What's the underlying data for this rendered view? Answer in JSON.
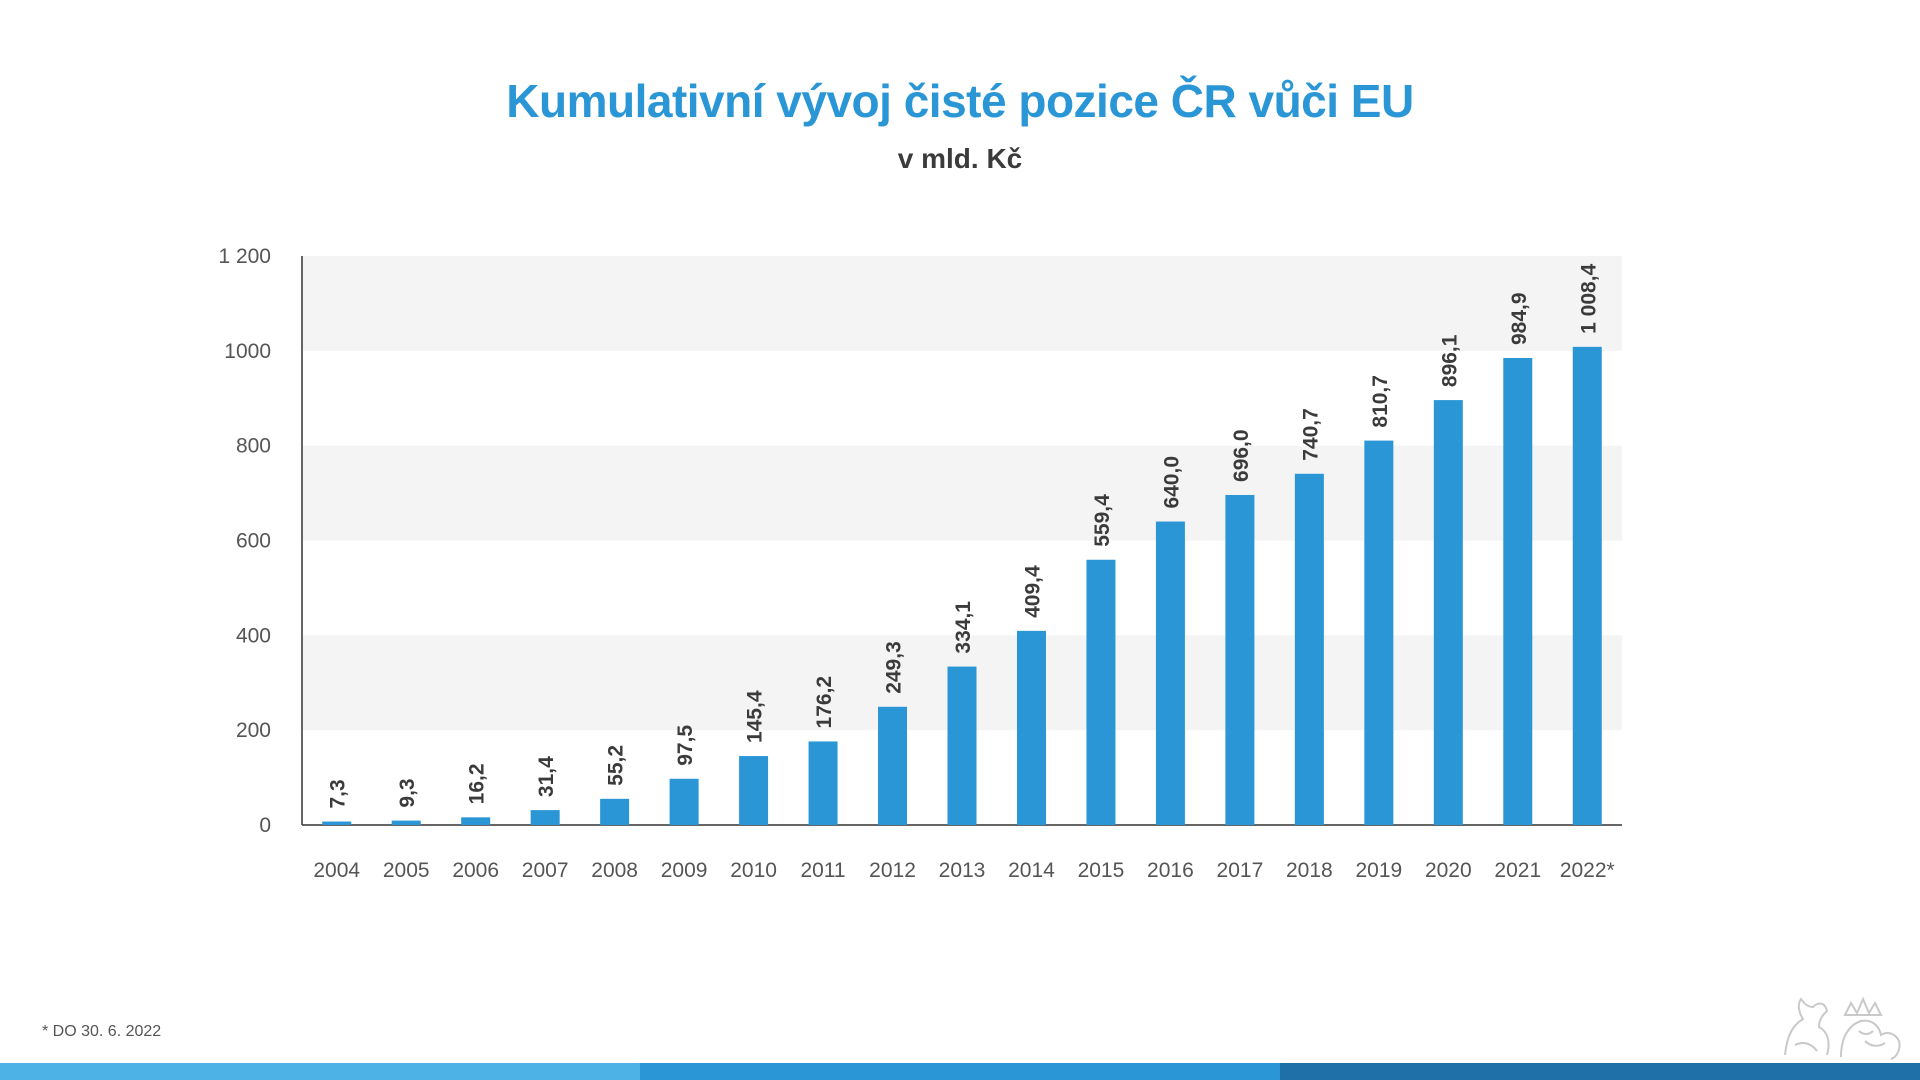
{
  "header": {
    "title": "Kumulativní vývoj čisté pozice ČR vůči EU",
    "subtitle": "v mld. Kč"
  },
  "footer": {
    "footnote": "* DO 30. 6. 2022"
  },
  "colors": {
    "title": "#2a96d5",
    "bar": "#2a96d5",
    "band_light": "#4db3e6",
    "band_mid": "#2a96d5",
    "band_dark": "#1f6fa8",
    "grid_band": "#f4f4f4"
  },
  "logo": {
    "icon": "czech-lion-coat-of-arms-icon"
  },
  "chart_data": {
    "type": "bar",
    "title": "Kumulativní vývoj čisté pozice ČR vůči EU",
    "subtitle": "v mld. Kč",
    "categories": [
      "2004",
      "2005",
      "2006",
      "2007",
      "2008",
      "2009",
      "2010",
      "2011",
      "2012",
      "2013",
      "2014",
      "2015",
      "2016",
      "2017",
      "2018",
      "2019",
      "2020",
      "2021",
      "2022*"
    ],
    "values": [
      7.3,
      9.3,
      16.2,
      31.4,
      55.2,
      97.5,
      145.4,
      176.2,
      249.3,
      334.1,
      409.4,
      559.4,
      640.0,
      696.0,
      740.7,
      810.7,
      896.1,
      984.9,
      1008.4
    ],
    "value_labels": [
      "7,3",
      "9,3",
      "16,2",
      "31,4",
      "55,2",
      "97,5",
      "145,4",
      "176,2",
      "249,3",
      "334,1",
      "409,4",
      "559,4",
      "640,0",
      "696,0",
      "740,7",
      "810,7",
      "896,1",
      "984,9",
      "1 008,4"
    ],
    "ylim": [
      0,
      1200
    ],
    "yticks": [
      0,
      200,
      400,
      600,
      800,
      1000,
      1200
    ],
    "ytick_labels": [
      "0",
      "200",
      "400",
      "600",
      "800",
      "1000",
      "1 200"
    ],
    "grid": "alternating bands",
    "legend": "none"
  }
}
